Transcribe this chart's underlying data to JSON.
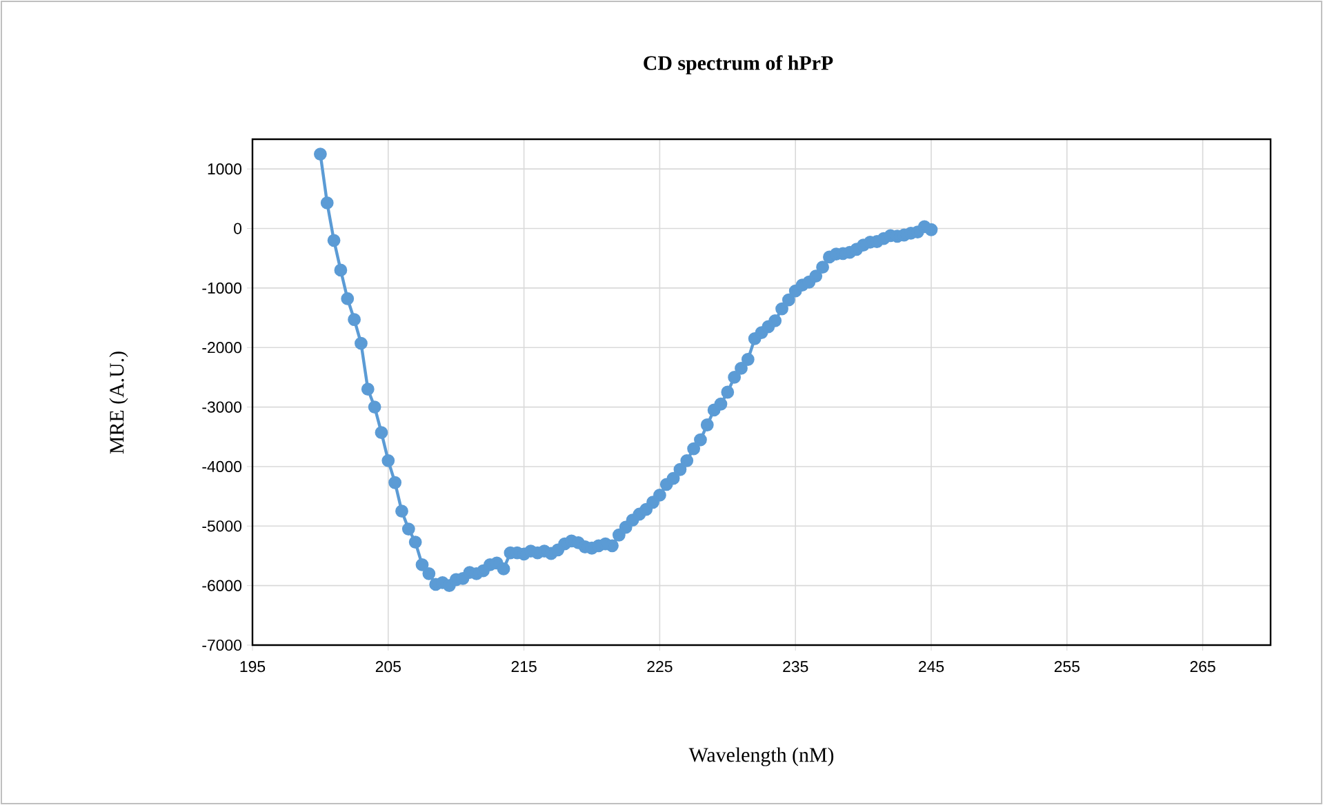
{
  "chart_data": {
    "type": "line",
    "title": "CD spectrum of hPrP",
    "xlabel": "Wavelength (nM)",
    "ylabel": "MRE (A.U.)",
    "xlim": [
      195,
      270
    ],
    "ylim": [
      -7000,
      1500
    ],
    "xticks": [
      195,
      205,
      215,
      225,
      235,
      245,
      255,
      265
    ],
    "yticks": [
      -7000,
      -6000,
      -5000,
      -4000,
      -3000,
      -2000,
      -1000,
      0,
      1000
    ],
    "grid": true,
    "marker": "circle",
    "line_style": "solid",
    "series": [
      {
        "color": "#5b9bd5",
        "x": [
          200,
          200.5,
          201,
          201.5,
          202,
          202.5,
          203,
          203.5,
          204,
          204.5,
          205,
          205.5,
          206,
          206.5,
          207,
          207.5,
          208,
          208.5,
          209,
          209.5,
          210,
          210.5,
          211,
          211.5,
          212,
          212.5,
          213,
          213.5,
          214,
          214.5,
          215,
          215.5,
          216,
          216.5,
          217,
          217.5,
          218,
          218.5,
          219,
          219.5,
          220,
          220.5,
          221,
          221.5,
          222,
          222.5,
          223,
          223.5,
          224,
          224.5,
          225,
          225.5,
          226,
          226.5,
          227,
          227.5,
          228,
          228.5,
          229,
          229.5,
          230,
          230.5,
          231,
          231.5,
          232,
          232.5,
          233,
          233.5,
          234,
          234.5,
          235,
          235.5,
          236,
          236.5,
          237,
          237.5,
          238,
          238.5,
          239,
          239.5,
          240,
          240.5,
          241,
          241.5,
          242,
          242.5,
          243,
          243.5,
          244,
          244.5,
          245
        ],
        "values": [
          1250,
          430,
          -200,
          -700,
          -1180,
          -1530,
          -1930,
          -2700,
          -3000,
          -3430,
          -3900,
          -4270,
          -4750,
          -5050,
          -5270,
          -5650,
          -5800,
          -5980,
          -5950,
          -6000,
          -5900,
          -5880,
          -5780,
          -5800,
          -5750,
          -5650,
          -5620,
          -5720,
          -5450,
          -5450,
          -5470,
          -5420,
          -5450,
          -5420,
          -5460,
          -5400,
          -5300,
          -5250,
          -5280,
          -5350,
          -5370,
          -5330,
          -5300,
          -5330,
          -5150,
          -5020,
          -4900,
          -4800,
          -4720,
          -4600,
          -4480,
          -4300,
          -4200,
          -4050,
          -3900,
          -3700,
          -3550,
          -3300,
          -3050,
          -2950,
          -2750,
          -2500,
          -2350,
          -2200,
          -1850,
          -1750,
          -1650,
          -1550,
          -1350,
          -1200,
          -1050,
          -950,
          -900,
          -800,
          -650,
          -480,
          -430,
          -420,
          -400,
          -350,
          -280,
          -230,
          -220,
          -170,
          -120,
          -130,
          -110,
          -80,
          -60,
          30,
          -20
        ]
      }
    ]
  }
}
